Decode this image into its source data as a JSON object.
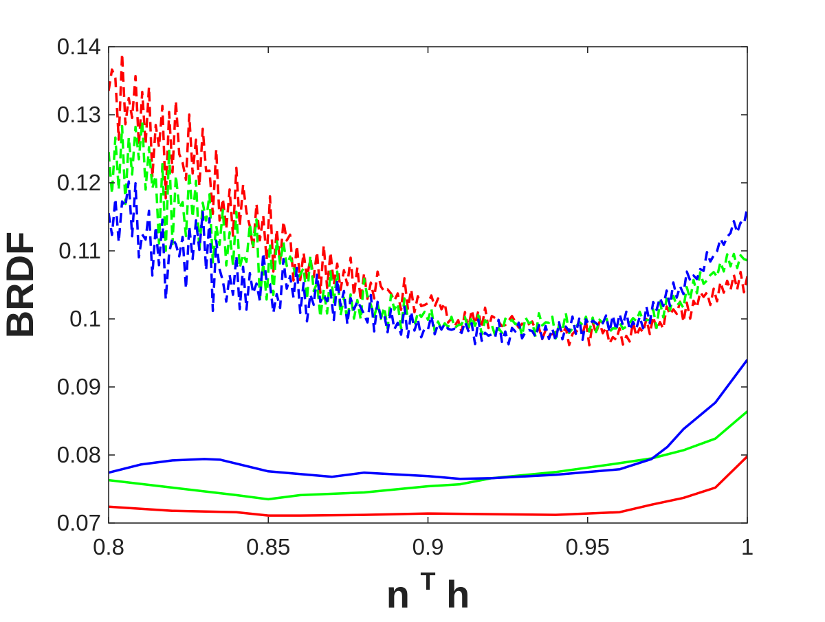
{
  "chart_data": {
    "type": "line",
    "xlabel": {
      "base": "n",
      "superscript": "T",
      "rest": "h"
    },
    "ylabel": "BRDF",
    "xlim": [
      0.8,
      1.0
    ],
    "ylim": [
      0.07,
      0.14
    ],
    "xticks": [
      0.8,
      0.85,
      0.9,
      0.95,
      1.0
    ],
    "xtick_labels": [
      "0.8",
      "0.85",
      "0.9",
      "0.95",
      "1"
    ],
    "yticks": [
      0.07,
      0.08,
      0.09,
      0.1,
      0.11,
      0.12,
      0.13,
      0.14
    ],
    "ytick_labels": [
      "0.07",
      "0.08",
      "0.09",
      "0.1",
      "0.11",
      "0.12",
      "0.13",
      "0.14"
    ],
    "grid": false,
    "series": [
      {
        "color": "#ff0000",
        "style": "dashed",
        "x": [
          0.8,
          0.81,
          0.82,
          0.83,
          0.84,
          0.85,
          0.86,
          0.87,
          0.88,
          0.89,
          0.9,
          0.91,
          0.92,
          0.93,
          0.94,
          0.95,
          0.96,
          0.97,
          0.98,
          0.99,
          1.0
        ],
        "y": [
          0.136,
          0.128,
          0.125,
          0.121,
          0.116,
          0.113,
          0.109,
          0.106,
          0.105,
          0.104,
          0.102,
          0.1,
          0.1,
          0.099,
          0.098,
          0.098,
          0.097,
          0.099,
          0.101,
          0.104,
          0.106
        ]
      },
      {
        "color": "#00ff00",
        "style": "dashed",
        "x": [
          0.8,
          0.81,
          0.82,
          0.83,
          0.84,
          0.85,
          0.86,
          0.87,
          0.88,
          0.89,
          0.9,
          0.91,
          0.92,
          0.93,
          0.94,
          0.95,
          0.96,
          0.97,
          0.98,
          0.99,
          1.0
        ],
        "y": [
          0.127,
          0.121,
          0.117,
          0.115,
          0.111,
          0.108,
          0.106,
          0.104,
          0.103,
          0.101,
          0.1,
          0.099,
          0.099,
          0.099,
          0.099,
          0.099,
          0.099,
          0.1,
          0.103,
          0.107,
          0.109
        ]
      },
      {
        "color": "#0000ff",
        "style": "dashed",
        "x": [
          0.8,
          0.81,
          0.82,
          0.83,
          0.84,
          0.85,
          0.86,
          0.87,
          0.88,
          0.89,
          0.9,
          0.91,
          0.92,
          0.93,
          0.94,
          0.95,
          0.96,
          0.97,
          0.98,
          0.99,
          1.0
        ],
        "y": [
          0.118,
          0.113,
          0.11,
          0.109,
          0.106,
          0.104,
          0.103,
          0.102,
          0.101,
          0.1,
          0.099,
          0.098,
          0.098,
          0.098,
          0.098,
          0.099,
          0.099,
          0.101,
          0.105,
          0.11,
          0.115
        ]
      },
      {
        "color": "#ff0000",
        "style": "solid",
        "x": [
          0.8,
          0.82,
          0.84,
          0.85,
          0.86,
          0.88,
          0.9,
          0.92,
          0.94,
          0.96,
          0.97,
          0.98,
          0.99,
          1.0
        ],
        "y": [
          0.0724,
          0.0718,
          0.0716,
          0.0711,
          0.0711,
          0.0712,
          0.0714,
          0.0713,
          0.0712,
          0.0716,
          0.0727,
          0.0737,
          0.0752,
          0.0798
        ]
      },
      {
        "color": "#00ff00",
        "style": "solid",
        "x": [
          0.8,
          0.82,
          0.84,
          0.85,
          0.86,
          0.88,
          0.9,
          0.91,
          0.92,
          0.94,
          0.96,
          0.97,
          0.98,
          0.99,
          1.0
        ],
        "y": [
          0.0763,
          0.0752,
          0.0741,
          0.0735,
          0.0741,
          0.0745,
          0.0754,
          0.0757,
          0.0766,
          0.0775,
          0.0788,
          0.0795,
          0.0807,
          0.0824,
          0.0864
        ]
      },
      {
        "color": "#0000ff",
        "style": "solid",
        "x": [
          0.8,
          0.81,
          0.82,
          0.83,
          0.835,
          0.85,
          0.87,
          0.88,
          0.9,
          0.91,
          0.92,
          0.94,
          0.96,
          0.97,
          0.975,
          0.98,
          0.99,
          1.0
        ],
        "y": [
          0.0774,
          0.0786,
          0.0792,
          0.0794,
          0.0793,
          0.0776,
          0.0768,
          0.0774,
          0.0769,
          0.0765,
          0.0766,
          0.0771,
          0.0779,
          0.0794,
          0.0812,
          0.0838,
          0.0877,
          0.094
        ]
      }
    ]
  }
}
